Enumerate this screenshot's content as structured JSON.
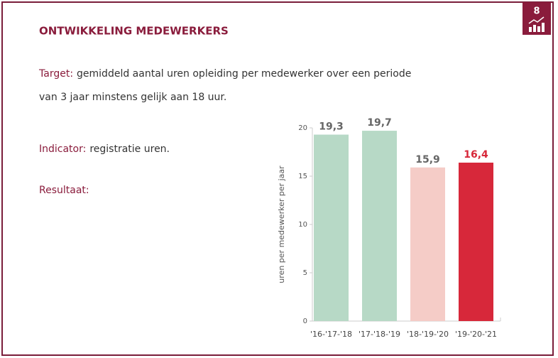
{
  "header": {
    "title": "ONTWIKKELING MEDEWERKERS",
    "goal_number": "8"
  },
  "target": {
    "label": "Target:",
    "lines": [
      "gemiddeld aantal uren opleiding per medewerker over een periode",
      "van 3 jaar minstens gelijk aan 18 uur."
    ]
  },
  "indicator": {
    "label": "Indicator:",
    "text": "registratie uren."
  },
  "result": {
    "label": "Resultaat:"
  },
  "chart_data": {
    "type": "bar",
    "y_label": "uren per medewerker per jaar",
    "categories": [
      "'16-'17-'18",
      "'17-'18-'19",
      "'18-'19-'20",
      "'19-'20-'21"
    ],
    "values": [
      19.3,
      19.7,
      15.9,
      16.4
    ],
    "value_labels": [
      "19,3",
      "19,7",
      "15,9",
      "16,4"
    ],
    "colors": [
      "#b7d9c6",
      "#b7d9c6",
      "#f5ccc7",
      "#d7283a"
    ],
    "label_colors": [
      "#666666",
      "#666666",
      "#666666",
      "#d7283a"
    ],
    "ylim": [
      0,
      20
    ],
    "yticks": [
      0,
      5,
      10,
      15,
      20
    ]
  }
}
